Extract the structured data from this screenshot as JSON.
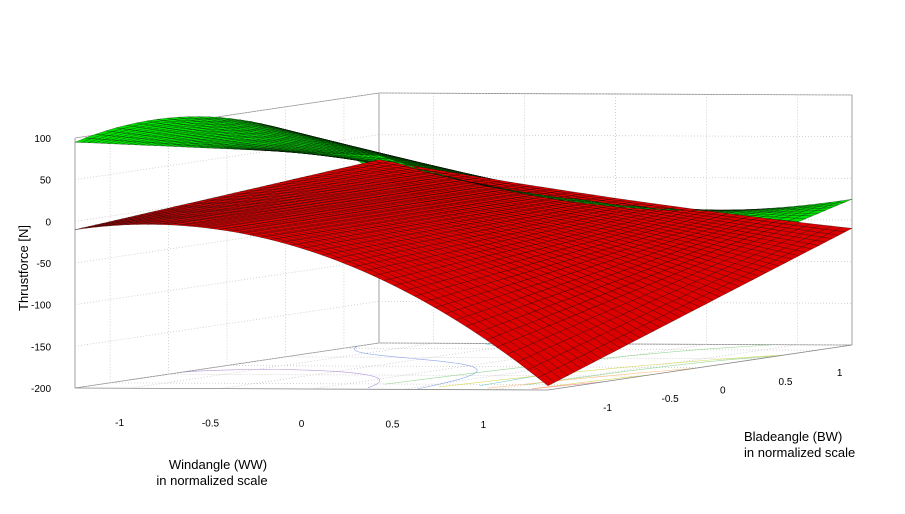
{
  "chart_data": {
    "type": "surface3d",
    "zlabel": "Thrustforce [N]",
    "xlabel_lines": [
      "Windangle (WW)",
      "in normalized scale"
    ],
    "ylabel_lines": [
      "Bladeangle (BW)",
      "in normalized scale"
    ],
    "x_ticks": [
      "-1",
      "-0.5",
      "0",
      "0.5",
      "1"
    ],
    "y_ticks": [
      "-1",
      "-0.5",
      "0",
      "0.5",
      "1"
    ],
    "z_ticks": [
      "100",
      "50",
      "0",
      "-50",
      "-100",
      "-150",
      "-200"
    ],
    "xlim": [
      -1.3,
      1.3
    ],
    "ylim": [
      -1.3,
      1.3
    ],
    "zlim": [
      -200,
      100
    ],
    "grid": true,
    "series": [
      {
        "color": "#00e000",
        "corners": {
          "x_neg_y_pos": 25,
          "x_pos_y_pos": -25,
          "x_neg_y_neg": 95,
          "x_pos_y_neg": -125
        },
        "mid_edges": {
          "y_neg_x_mid": 100,
          "y_pos_x_mid": -35
        }
      },
      {
        "color": "#dd0000",
        "corners": {
          "x_neg_y_pos": 20,
          "x_pos_y_pos": -60,
          "x_neg_y_neg": -10,
          "x_pos_y_neg": -195
        },
        "mid_edges": {
          "y_neg_x_mid": -35,
          "y_pos_x_mid": -25
        }
      }
    ]
  }
}
